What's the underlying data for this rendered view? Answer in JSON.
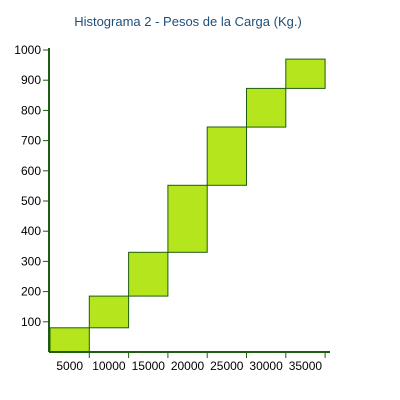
{
  "chart_data": {
    "type": "bar",
    "title": "Histograma 2 - Pesos de la Carga (Kg.)",
    "xlabel": "",
    "ylabel": "",
    "categories": [
      "5000",
      "10000",
      "15000",
      "20000",
      "25000",
      "30000",
      "35000"
    ],
    "y_ticks": [
      "100",
      "200",
      "300",
      "400",
      "500",
      "600",
      "700",
      "800",
      "900",
      "1000"
    ],
    "ylim": [
      0,
      1000
    ],
    "bars": [
      {
        "label": "5000",
        "from": 0,
        "to": 80
      },
      {
        "label": "10000",
        "from": 80,
        "to": 185
      },
      {
        "label": "15000",
        "from": 185,
        "to": 330
      },
      {
        "label": "20000",
        "from": 330,
        "to": 552
      },
      {
        "label": "25000",
        "from": 552,
        "to": 745
      },
      {
        "label": "30000",
        "from": 745,
        "to": 873
      },
      {
        "label": "35000",
        "from": 873,
        "to": 970
      }
    ],
    "grid": false,
    "legend": "none",
    "colors": {
      "bar_fill": "#b5e61d",
      "bar_stroke": "#1e5c12",
      "axis": "#1e5c12",
      "title": "#1f4e79",
      "text": "#000000"
    }
  }
}
